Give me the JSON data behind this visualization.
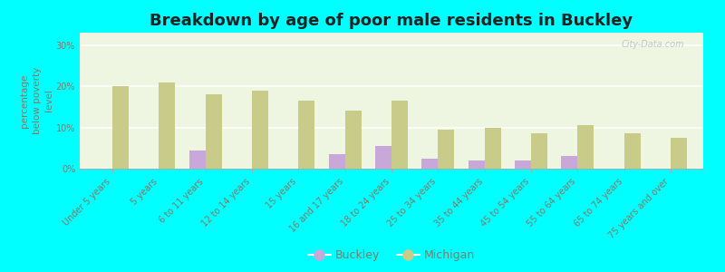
{
  "title": "Breakdown by age of poor male residents in Buckley",
  "ylabel": "percentage\nbelow poverty\nlevel",
  "categories": [
    "Under 5 years",
    "5 years",
    "6 to 11 years",
    "12 to 14 years",
    "15 years",
    "16 and 17 years",
    "18 to 24 years",
    "25 to 34 years",
    "35 to 44 years",
    "45 to 54 years",
    "55 to 64 years",
    "65 to 74 years",
    "75 years and over"
  ],
  "buckley": [
    0,
    0,
    4.5,
    0,
    0,
    3.5,
    5.5,
    2.5,
    2.0,
    2.0,
    3.0,
    0,
    0
  ],
  "michigan": [
    20.0,
    21.0,
    18.0,
    19.0,
    16.5,
    14.0,
    16.5,
    9.5,
    10.0,
    8.5,
    10.5,
    8.5,
    7.5
  ],
  "buckley_color": "#c8a8d8",
  "michigan_color": "#c8cc88",
  "background_color": "#00ffff",
  "plot_bg_color": "#eef5e0",
  "ylim": [
    0,
    33
  ],
  "yticks": [
    0,
    10,
    20,
    30
  ],
  "ytick_labels": [
    "0%",
    "10%",
    "20%",
    "30%"
  ],
  "title_fontsize": 13,
  "axis_label_fontsize": 7.5,
  "tick_label_fontsize": 7,
  "legend_fontsize": 9,
  "bar_width": 0.35,
  "text_color": "#887766",
  "grid_color": "#ccccaa",
  "watermark": "City-Data.com"
}
